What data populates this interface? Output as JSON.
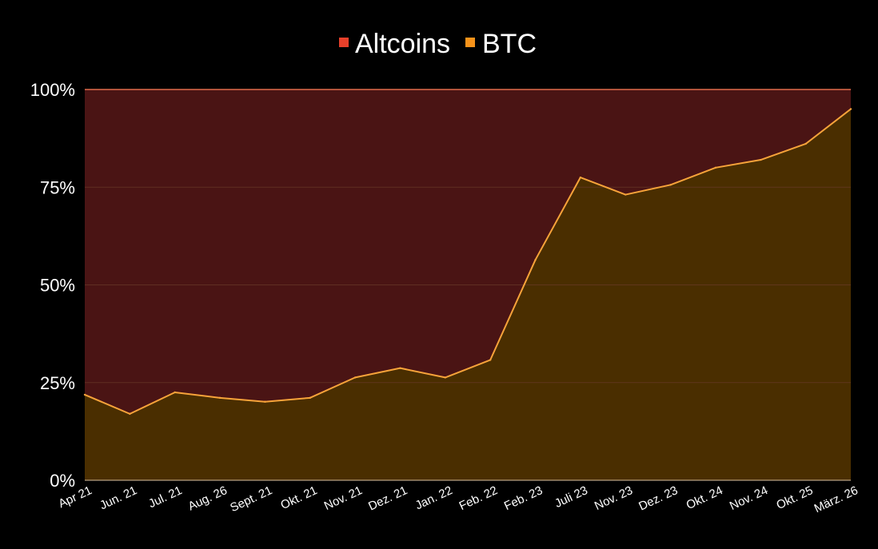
{
  "chart_data": {
    "type": "area",
    "stacked": true,
    "percent": true,
    "categories": [
      "Apr 21",
      "Jun. 21",
      "Jul. 21",
      "Aug. 26",
      "Sept. 21",
      "Okt. 21",
      "Nov. 21",
      "Dez. 21",
      "Jan. 22",
      "Feb. 22",
      "Feb. 23",
      "Juli 23",
      "Nov. 23",
      "Dez. 23",
      "Okt. 24",
      "Nov. 24",
      "Okt. 25",
      "März. 26"
    ],
    "series": [
      {
        "name": "Altcoins",
        "color": "#e8402a",
        "fill": "#4a1414",
        "values": [
          78.1,
          83.0,
          77.5,
          78.9,
          79.9,
          78.9,
          73.7,
          71.3,
          73.7,
          69.2,
          43.6,
          22.5,
          26.9,
          24.4,
          20.0,
          18.0,
          13.9,
          5.0
        ]
      },
      {
        "name": "BTC",
        "color": "#f7931a",
        "fill": "#4a2e00",
        "values": [
          21.9,
          17.0,
          22.5,
          21.1,
          20.1,
          21.1,
          26.3,
          28.7,
          26.3,
          30.8,
          56.4,
          77.5,
          73.1,
          75.6,
          80.0,
          82.0,
          86.1,
          95.0
        ]
      }
    ],
    "yticks": [
      "0%",
      "25%",
      "50%",
      "75%",
      "100%"
    ],
    "ylim": [
      0,
      100
    ],
    "grid": true,
    "legend_position": "top-center",
    "line_color": "#f7a33a",
    "grid_color": "#6a3a2a",
    "top_border_color": "#e06a4a"
  }
}
